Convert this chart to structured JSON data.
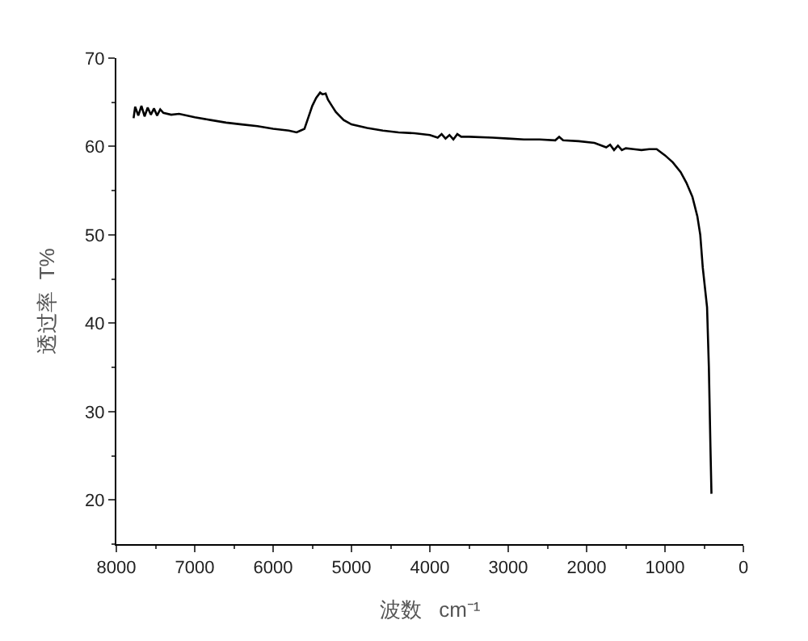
{
  "chart_data": {
    "type": "line",
    "xlabel": "波数   cm⁻¹",
    "ylabel": "透过率  T%",
    "x": [
      7780,
      7760,
      7720,
      7680,
      7640,
      7600,
      7560,
      7520,
      7480,
      7440,
      7400,
      7300,
      7200,
      7000,
      6800,
      6600,
      6400,
      6200,
      6000,
      5800,
      5700,
      5650,
      5600,
      5550,
      5500,
      5450,
      5400,
      5370,
      5330,
      5300,
      5250,
      5200,
      5100,
      5000,
      4800,
      4600,
      4400,
      4200,
      4000,
      3900,
      3850,
      3800,
      3750,
      3700,
      3650,
      3600,
      3500,
      3200,
      3000,
      2800,
      2600,
      2400,
      2350,
      2300,
      2100,
      1900,
      1750,
      1700,
      1650,
      1600,
      1550,
      1500,
      1400,
      1300,
      1200,
      1106,
      1000,
      900,
      800,
      727,
      650,
      587,
      550,
      518,
      490,
      463,
      440,
      420,
      407
    ],
    "values": [
      63.2,
      64.5,
      63.5,
      64.6,
      63.4,
      64.4,
      63.6,
      64.3,
      63.5,
      64.2,
      63.8,
      63.6,
      63.7,
      63.3,
      63.0,
      62.7,
      62.5,
      62.3,
      62.0,
      61.8,
      61.6,
      61.8,
      62.0,
      63.3,
      64.6,
      65.5,
      66.1,
      65.9,
      66.0,
      65.3,
      64.6,
      63.9,
      63.0,
      62.5,
      62.1,
      61.8,
      61.6,
      61.5,
      61.3,
      61.0,
      61.4,
      60.9,
      61.3,
      60.8,
      61.4,
      61.1,
      61.1,
      61.0,
      60.9,
      60.8,
      60.8,
      60.7,
      61.1,
      60.7,
      60.6,
      60.4,
      59.9,
      60.2,
      59.6,
      60.1,
      59.6,
      59.8,
      59.7,
      59.6,
      59.7,
      59.7,
      59.0,
      58.2,
      57.1,
      55.9,
      54.3,
      52.1,
      50.0,
      46.3,
      44.0,
      41.8,
      35.0,
      26.0,
      20.7
    ],
    "color": "#000000",
    "xlim": [
      8000,
      0
    ],
    "xticks": [
      8000,
      7000,
      6000,
      5000,
      4000,
      3000,
      2000,
      1000,
      0
    ],
    "ylim": [
      15,
      70
    ],
    "yticks": [
      20,
      30,
      40,
      50,
      60,
      70
    ]
  }
}
